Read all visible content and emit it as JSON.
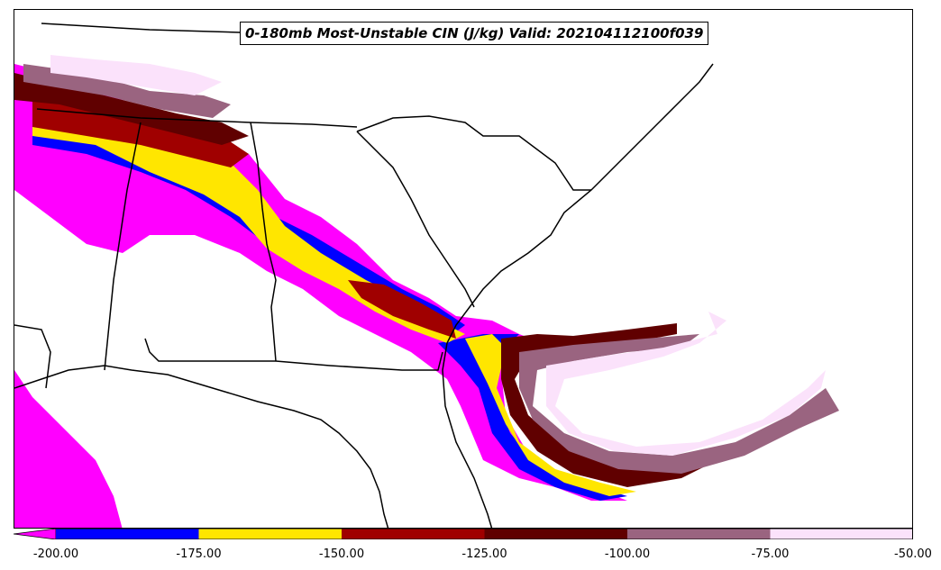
{
  "title": "0-180mb Most-Unstable CIN (J/kg) Valid: 202104112100f039",
  "colorbar": {
    "extend": "min",
    "bins": [
      {
        "from": -200,
        "to": -175,
        "color": "#0000ff"
      },
      {
        "from": -175,
        "to": -150,
        "color": "#ffe600"
      },
      {
        "from": -150,
        "to": -125,
        "color": "#a00000"
      },
      {
        "from": -125,
        "to": -100,
        "color": "#600000"
      },
      {
        "from": -100,
        "to": -75,
        "color": "#9a6480"
      },
      {
        "from": -75,
        "to": -50,
        "color": "#fbe2fb"
      }
    ],
    "under_color": "#ff00ff",
    "tick_labels": [
      "-200.00",
      "-175.00",
      "-150.00",
      "-125.00",
      "-100.00",
      "-75.00",
      "-50.00"
    ]
  },
  "map": {
    "layers": [
      "coastlines",
      "state-borders"
    ],
    "shaded_field": "0-180mb Most-Unstable CIN (J/kg)"
  }
}
